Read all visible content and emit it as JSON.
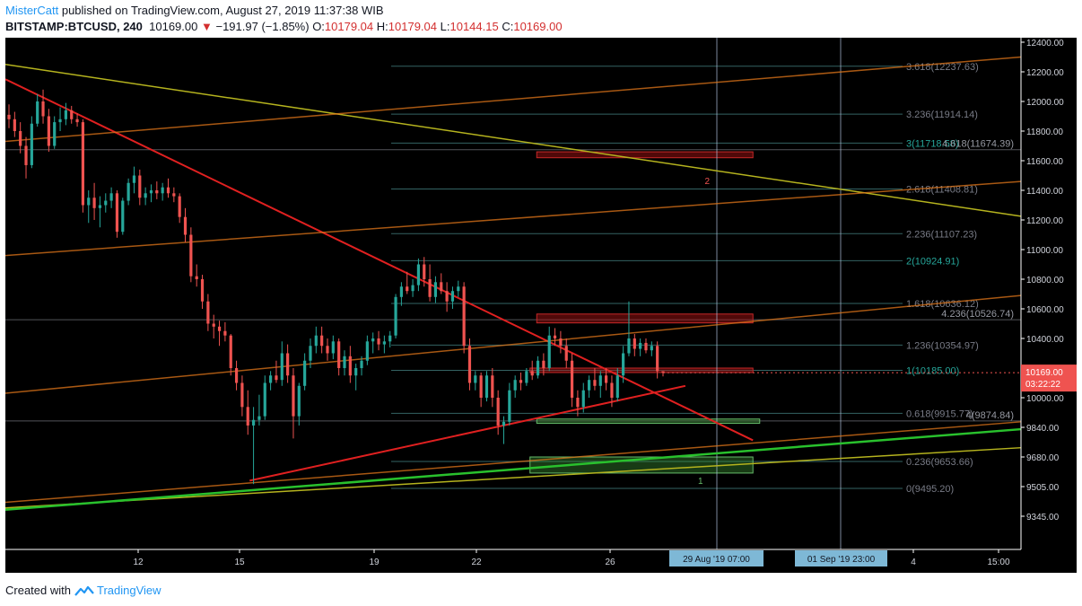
{
  "header": {
    "author": "MisterCatt",
    "published_text": " published on TradingView.com, August 27, 2019 11:37:38 WIB",
    "symbol": "BITSTAMP:BTCUSD, 240",
    "last_price": "10169.00",
    "change": "−191.97 (−1.85%)",
    "o_label": "O:",
    "o_value": "10179.04",
    "h_label": "H:",
    "h_value": "10179.04",
    "l_label": "L:",
    "l_value": "10144.15",
    "c_label": "C:",
    "c_value": "10169.00"
  },
  "footer": {
    "created_with": "Created with",
    "brand": "TradingView"
  },
  "colors": {
    "up": "#26a69a",
    "down": "#ef5350",
    "fib_line": "#4a8e8e",
    "fib_text": "#26a69a",
    "fib_text_dim": "#787b86",
    "trend_red": "#e02020",
    "trend_orange": "#e0761a",
    "trend_olive": "#b5b31e",
    "trend_green": "#29c12d",
    "price_tag": "#ef5350",
    "date_tag": "#7eb8d6"
  },
  "chart_data": {
    "type": "candlestick",
    "symbol": "BITSTAMP:BTCUSD",
    "interval": "240",
    "x_ticks": [
      "12",
      "15",
      "19",
      "22",
      "26",
      "4",
      "15:00"
    ],
    "y_ticks": [
      "12400.00",
      "12200.00",
      "12000.00",
      "11800.00",
      "11600.00",
      "11400.00",
      "11200.00",
      "11000.00",
      "10800.00",
      "10600.00",
      "10400.00",
      "10200.00",
      "10000.00",
      "9840.00",
      "9680.00",
      "9505.00",
      "9345.00"
    ],
    "current_price_tag": "10169.00",
    "countdown": "03:22:22",
    "date_tags": [
      "29 Aug '19   07:00",
      "01 Sep '19   23:00"
    ],
    "fib_levels": [
      {
        "label": "3.618(12237.63)",
        "price": 12237.63
      },
      {
        "label": "3.236(11914.14)",
        "price": 11914.14
      },
      {
        "label": "3(11718.58)",
        "price": 11718.58
      },
      {
        "label": "2.618(11408.81)",
        "price": 11408.81
      },
      {
        "label": "2.236(11107.23)",
        "price": 11107.23
      },
      {
        "label": "2(10924.91)",
        "price": 10924.91
      },
      {
        "label": "1.618(10636.12)",
        "price": 10636.12
      },
      {
        "label": "1.236(10354.97)",
        "price": 10354.97
      },
      {
        "label": "1(10185.00)",
        "price": 10185.0
      },
      {
        "label": "0.618(9915.77)",
        "price": 9915.77
      },
      {
        "label": "0.236(9653.66)",
        "price": 9653.66
      },
      {
        "label": "0(9495.20)",
        "price": 9495.2
      }
    ],
    "extension_levels": [
      {
        "label": "4.618(11674.39)",
        "price": 11674.39
      },
      {
        "label": "4.236(10526.74)",
        "price": 10526.74
      },
      {
        "label": "4(9874.84)",
        "price": 9874.84
      }
    ],
    "zones": [
      {
        "type": "resistance",
        "label": "2",
        "top": 11660,
        "bottom": 11620,
        "day_start": 23.8,
        "day_end": 30.2
      },
      {
        "type": "resistance",
        "label": "",
        "top": 10565,
        "bottom": 10505,
        "day_start": 23.8,
        "day_end": 30.2
      },
      {
        "type": "resistance",
        "label": "",
        "top": 10200,
        "bottom": 10170,
        "day_start": 23.6,
        "day_end": 30.2
      },
      {
        "type": "support",
        "label": "",
        "top": 9885,
        "bottom": 9862,
        "day_start": 23.8,
        "day_end": 30.4
      },
      {
        "type": "support",
        "label": "1",
        "top": 9680,
        "bottom": 9585,
        "day_start": 23.6,
        "day_end": 30.2
      }
    ],
    "trendlines": [
      {
        "color": "trend_red",
        "from": [
          8.0,
          12150
        ],
        "to": [
          30.2,
          9770
        ]
      },
      {
        "color": "trend_red",
        "from": [
          15.3,
          9540
        ],
        "to": [
          28.2,
          10080
        ]
      },
      {
        "color": "trend_olive",
        "from": [
          8.0,
          12250
        ],
        "to": [
          33.2,
          11225
        ]
      },
      {
        "color": "trend_orange",
        "from": [
          8.0,
          11730
        ],
        "to": [
          33.2,
          12300
        ]
      },
      {
        "color": "trend_orange",
        "from": [
          8.0,
          10960
        ],
        "to": [
          33.2,
          11460
        ]
      },
      {
        "color": "trend_orange",
        "from": [
          8.0,
          10030
        ],
        "to": [
          33.2,
          10690
        ]
      },
      {
        "color": "trend_orange",
        "from": [
          8.0,
          9420
        ],
        "to": [
          33.2,
          9870
        ]
      },
      {
        "color": "trend_olive",
        "from": [
          8.0,
          9390
        ],
        "to": [
          33.2,
          9730
        ]
      },
      {
        "color": "trend_green",
        "from": [
          8.0,
          9380
        ],
        "to": [
          33.2,
          9830
        ]
      }
    ],
    "candles": [
      {
        "o": 11910,
        "h": 11980,
        "l": 11820,
        "c": 11880
      },
      {
        "o": 11880,
        "h": 11930,
        "l": 11760,
        "c": 11800
      },
      {
        "o": 11800,
        "h": 11860,
        "l": 11650,
        "c": 11700
      },
      {
        "o": 11700,
        "h": 11760,
        "l": 11480,
        "c": 11570
      },
      {
        "o": 11570,
        "h": 11900,
        "l": 11550,
        "c": 11850
      },
      {
        "o": 11850,
        "h": 12050,
        "l": 11830,
        "c": 12000
      },
      {
        "o": 12000,
        "h": 12080,
        "l": 11850,
        "c": 11900
      },
      {
        "o": 11900,
        "h": 11950,
        "l": 11660,
        "c": 11700
      },
      {
        "o": 11700,
        "h": 11900,
        "l": 11680,
        "c": 11860
      },
      {
        "o": 11860,
        "h": 11960,
        "l": 11800,
        "c": 11880
      },
      {
        "o": 11880,
        "h": 11990,
        "l": 11840,
        "c": 11940
      },
      {
        "o": 11940,
        "h": 11970,
        "l": 11850,
        "c": 11880
      },
      {
        "o": 11880,
        "h": 11920,
        "l": 11830,
        "c": 11860
      },
      {
        "o": 11860,
        "h": 11880,
        "l": 11250,
        "c": 11300
      },
      {
        "o": 11300,
        "h": 11400,
        "l": 11180,
        "c": 11350
      },
      {
        "o": 11350,
        "h": 11450,
        "l": 11200,
        "c": 11280
      },
      {
        "o": 11280,
        "h": 11360,
        "l": 11150,
        "c": 11300
      },
      {
        "o": 11300,
        "h": 11380,
        "l": 11250,
        "c": 11330
      },
      {
        "o": 11330,
        "h": 11420,
        "l": 11280,
        "c": 11380
      },
      {
        "o": 11380,
        "h": 11400,
        "l": 11080,
        "c": 11120
      },
      {
        "o": 11120,
        "h": 11350,
        "l": 11100,
        "c": 11330
      },
      {
        "o": 11330,
        "h": 11480,
        "l": 11300,
        "c": 11450
      },
      {
        "o": 11450,
        "h": 11560,
        "l": 11380,
        "c": 11500
      },
      {
        "o": 11500,
        "h": 11540,
        "l": 11300,
        "c": 11350
      },
      {
        "o": 11350,
        "h": 11420,
        "l": 11300,
        "c": 11380
      },
      {
        "o": 11380,
        "h": 11440,
        "l": 11320,
        "c": 11400
      },
      {
        "o": 11400,
        "h": 11460,
        "l": 11340,
        "c": 11380
      },
      {
        "o": 11380,
        "h": 11450,
        "l": 11330,
        "c": 11420
      },
      {
        "o": 11420,
        "h": 11480,
        "l": 11350,
        "c": 11380
      },
      {
        "o": 11380,
        "h": 11420,
        "l": 11320,
        "c": 11360
      },
      {
        "o": 11360,
        "h": 11380,
        "l": 11180,
        "c": 11220
      },
      {
        "o": 11220,
        "h": 11280,
        "l": 11050,
        "c": 11100
      },
      {
        "o": 11100,
        "h": 11150,
        "l": 10780,
        "c": 10820
      },
      {
        "o": 10820,
        "h": 10900,
        "l": 10750,
        "c": 10800
      },
      {
        "o": 10800,
        "h": 10830,
        "l": 10600,
        "c": 10650
      },
      {
        "o": 10650,
        "h": 10700,
        "l": 10450,
        "c": 10500
      },
      {
        "o": 10500,
        "h": 10560,
        "l": 10400,
        "c": 10480
      },
      {
        "o": 10480,
        "h": 10520,
        "l": 10350,
        "c": 10450
      },
      {
        "o": 10450,
        "h": 10510,
        "l": 10380,
        "c": 10420
      },
      {
        "o": 10420,
        "h": 10430,
        "l": 10150,
        "c": 10200
      },
      {
        "o": 10200,
        "h": 10250,
        "l": 10050,
        "c": 10100
      },
      {
        "o": 10100,
        "h": 10150,
        "l": 9900,
        "c": 9950
      },
      {
        "o": 9950,
        "h": 10050,
        "l": 9800,
        "c": 9850
      },
      {
        "o": 9850,
        "h": 9950,
        "l": 9520,
        "c": 9880
      },
      {
        "o": 9880,
        "h": 10020,
        "l": 9850,
        "c": 9900
      },
      {
        "o": 9900,
        "h": 10150,
        "l": 9880,
        "c": 10100
      },
      {
        "o": 10100,
        "h": 10180,
        "l": 10050,
        "c": 10150
      },
      {
        "o": 10150,
        "h": 10250,
        "l": 10100,
        "c": 10120
      },
      {
        "o": 10120,
        "h": 10380,
        "l": 10080,
        "c": 10300
      },
      {
        "o": 10300,
        "h": 10360,
        "l": 10100,
        "c": 10150
      },
      {
        "o": 10150,
        "h": 10200,
        "l": 9780,
        "c": 9900
      },
      {
        "o": 9900,
        "h": 10100,
        "l": 9850,
        "c": 10080
      },
      {
        "o": 10080,
        "h": 10300,
        "l": 10050,
        "c": 10250
      },
      {
        "o": 10250,
        "h": 10400,
        "l": 10200,
        "c": 10350
      },
      {
        "o": 10350,
        "h": 10480,
        "l": 10300,
        "c": 10420
      },
      {
        "o": 10420,
        "h": 10480,
        "l": 10300,
        "c": 10350
      },
      {
        "o": 10350,
        "h": 10400,
        "l": 10250,
        "c": 10300
      },
      {
        "o": 10300,
        "h": 10420,
        "l": 10260,
        "c": 10380
      },
      {
        "o": 10380,
        "h": 10400,
        "l": 10150,
        "c": 10200
      },
      {
        "o": 10200,
        "h": 10320,
        "l": 10150,
        "c": 10280
      },
      {
        "o": 10280,
        "h": 10350,
        "l": 10100,
        "c": 10150
      },
      {
        "o": 10150,
        "h": 10230,
        "l": 10050,
        "c": 10200
      },
      {
        "o": 10200,
        "h": 10280,
        "l": 10150,
        "c": 10250
      },
      {
        "o": 10250,
        "h": 10420,
        "l": 10220,
        "c": 10380
      },
      {
        "o": 10380,
        "h": 10440,
        "l": 10300,
        "c": 10400
      },
      {
        "o": 10400,
        "h": 10450,
        "l": 10320,
        "c": 10360
      },
      {
        "o": 10360,
        "h": 10420,
        "l": 10300,
        "c": 10380
      },
      {
        "o": 10380,
        "h": 10450,
        "l": 10340,
        "c": 10420
      },
      {
        "o": 10420,
        "h": 10700,
        "l": 10400,
        "c": 10680
      },
      {
        "o": 10680,
        "h": 10780,
        "l": 10620,
        "c": 10750
      },
      {
        "o": 10750,
        "h": 10850,
        "l": 10700,
        "c": 10720
      },
      {
        "o": 10720,
        "h": 10800,
        "l": 10680,
        "c": 10760
      },
      {
        "o": 10760,
        "h": 10940,
        "l": 10720,
        "c": 10900
      },
      {
        "o": 10900,
        "h": 10950,
        "l": 10750,
        "c": 10800
      },
      {
        "o": 10800,
        "h": 10900,
        "l": 10650,
        "c": 10680
      },
      {
        "o": 10680,
        "h": 10820,
        "l": 10640,
        "c": 10780
      },
      {
        "o": 10780,
        "h": 10840,
        "l": 10700,
        "c": 10720
      },
      {
        "o": 10720,
        "h": 10780,
        "l": 10580,
        "c": 10650
      },
      {
        "o": 10650,
        "h": 10750,
        "l": 10600,
        "c": 10720
      },
      {
        "o": 10720,
        "h": 10790,
        "l": 10680,
        "c": 10750
      },
      {
        "o": 10750,
        "h": 10780,
        "l": 10300,
        "c": 10350
      },
      {
        "o": 10350,
        "h": 10400,
        "l": 10050,
        "c": 10100
      },
      {
        "o": 10100,
        "h": 10180,
        "l": 10050,
        "c": 10150
      },
      {
        "o": 10150,
        "h": 10170,
        "l": 9950,
        "c": 10000
      },
      {
        "o": 10000,
        "h": 10180,
        "l": 9980,
        "c": 10150
      },
      {
        "o": 10150,
        "h": 10200,
        "l": 9950,
        "c": 10000
      },
      {
        "o": 10000,
        "h": 10050,
        "l": 9800,
        "c": 9850
      },
      {
        "o": 9850,
        "h": 9900,
        "l": 9750,
        "c": 9870
      },
      {
        "o": 9870,
        "h": 10100,
        "l": 9850,
        "c": 10050
      },
      {
        "o": 10050,
        "h": 10150,
        "l": 10000,
        "c": 10120
      },
      {
        "o": 10120,
        "h": 10170,
        "l": 10050,
        "c": 10100
      },
      {
        "o": 10100,
        "h": 10200,
        "l": 10080,
        "c": 10180
      },
      {
        "o": 10180,
        "h": 10250,
        "l": 10120,
        "c": 10150
      },
      {
        "o": 10150,
        "h": 10280,
        "l": 10130,
        "c": 10250
      },
      {
        "o": 10250,
        "h": 10300,
        "l": 10150,
        "c": 10200
      },
      {
        "o": 10200,
        "h": 10480,
        "l": 10180,
        "c": 10420
      },
      {
        "o": 10420,
        "h": 10470,
        "l": 10350,
        "c": 10400
      },
      {
        "o": 10400,
        "h": 10450,
        "l": 10300,
        "c": 10350
      },
      {
        "o": 10350,
        "h": 10400,
        "l": 10200,
        "c": 10250
      },
      {
        "o": 10250,
        "h": 10300,
        "l": 9950,
        "c": 10000
      },
      {
        "o": 10000,
        "h": 10050,
        "l": 9900,
        "c": 9950
      },
      {
        "o": 9950,
        "h": 10100,
        "l": 9920,
        "c": 10050
      },
      {
        "o": 10050,
        "h": 10150,
        "l": 10000,
        "c": 10120
      },
      {
        "o": 10120,
        "h": 10200,
        "l": 10050,
        "c": 10080
      },
      {
        "o": 10080,
        "h": 10180,
        "l": 10000,
        "c": 10150
      },
      {
        "o": 10150,
        "h": 10200,
        "l": 10050,
        "c": 10100
      },
      {
        "o": 10100,
        "h": 10150,
        "l": 9950,
        "c": 10000
      },
      {
        "o": 10000,
        "h": 10200,
        "l": 9980,
        "c": 10150
      },
      {
        "o": 10150,
        "h": 10350,
        "l": 10100,
        "c": 10300
      },
      {
        "o": 10300,
        "h": 10650,
        "l": 10280,
        "c": 10400
      },
      {
        "o": 10400,
        "h": 10430,
        "l": 10280,
        "c": 10330
      },
      {
        "o": 10330,
        "h": 10400,
        "l": 10280,
        "c": 10370
      },
      {
        "o": 10370,
        "h": 10400,
        "l": 10300,
        "c": 10320
      },
      {
        "o": 10320,
        "h": 10380,
        "l": 10280,
        "c": 10350
      },
      {
        "o": 10350,
        "h": 10380,
        "l": 10130,
        "c": 10179
      },
      {
        "o": 10179,
        "h": 10179,
        "l": 10144,
        "c": 10169
      }
    ]
  }
}
